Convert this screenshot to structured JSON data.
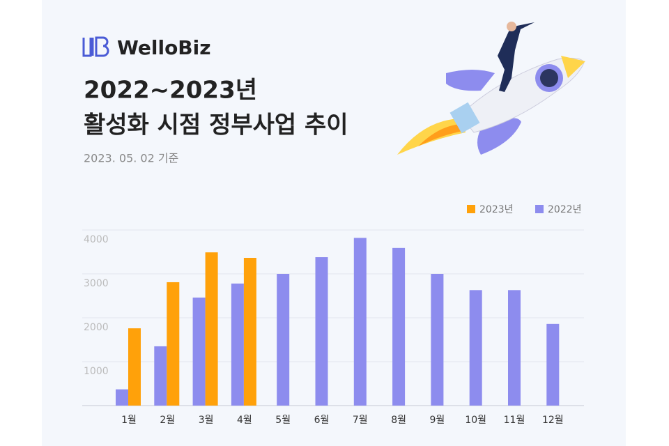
{
  "brand": "WelloBiz",
  "chart_data": {
    "type": "bar",
    "title": [
      "2022~2023년",
      "활성화 시점 정부사업 추이"
    ],
    "subtitle": "2023. 05. 02 기준",
    "categories": [
      "1월",
      "2월",
      "3월",
      "4월",
      "5월",
      "6월",
      "7월",
      "8월",
      "9월",
      "10월",
      "11월",
      "12월"
    ],
    "series": [
      {
        "name": "2023년",
        "color": "#ffa10a",
        "values": [
          1760,
          2810,
          3490,
          3365,
          null,
          null,
          null,
          null,
          null,
          null,
          null,
          null
        ]
      },
      {
        "name": "2022년",
        "color": "#8d8cee",
        "values": [
          370,
          1350,
          2460,
          2780,
          3000,
          3380,
          3820,
          3590,
          3000,
          2630,
          2630,
          1860
        ]
      }
    ],
    "ylim": [
      0,
      4000
    ],
    "yticks": [
      1000,
      2000,
      3000,
      4000
    ],
    "grid": true,
    "legend": "top-right"
  }
}
